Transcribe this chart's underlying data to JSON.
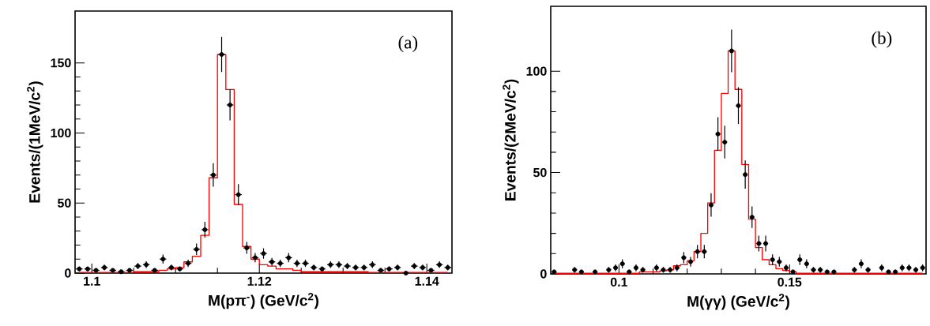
{
  "chart_data": [
    {
      "type": "scatter",
      "xlabel": "M(pπ$^{-}$) (GeV/c$^{2}$)",
      "ylabel": "Events/(1MeV/c$^{2}$)",
      "annotations": [
        "(a)"
      ],
      "xlim": [
        1.098,
        1.143
      ],
      "ylim": [
        0,
        187
      ],
      "xticks": [
        1.1,
        1.12,
        1.14
      ],
      "yticks": [
        0,
        50,
        100,
        150
      ],
      "x": [
        1.0985,
        1.0995,
        1.1005,
        1.1015,
        1.1025,
        1.1035,
        1.1045,
        1.1055,
        1.1065,
        1.1075,
        1.1085,
        1.1095,
        1.1105,
        1.1115,
        1.1125,
        1.1135,
        1.1145,
        1.1155,
        1.1165,
        1.1175,
        1.1185,
        1.1195,
        1.1205,
        1.1215,
        1.1225,
        1.1235,
        1.1245,
        1.1255,
        1.1265,
        1.1275,
        1.1285,
        1.1295,
        1.1305,
        1.1315,
        1.1325,
        1.1335,
        1.1345,
        1.1355,
        1.1365,
        1.1375,
        1.1385,
        1.1395,
        1.1405,
        1.1415,
        1.1425
      ],
      "series": [
        {
          "type": "step",
          "color": "#ff0000",
          "values": [
            0.5,
            0.5,
            0.5,
            0.5,
            0.5,
            0.5,
            0.5,
            1,
            1,
            1,
            2,
            3,
            4,
            8,
            12,
            27,
            68,
            156,
            131,
            49,
            19,
            10,
            6,
            5,
            3,
            3,
            2,
            1,
            1,
            1,
            1,
            1,
            1,
            1,
            1,
            0.5,
            0.5,
            0.5,
            0.5,
            0.5,
            0.5,
            0.5,
            0.5,
            0.5,
            0.5
          ]
        },
        {
          "color": "#000000",
          "marker": "circle",
          "values": [
            3,
            3,
            2,
            4,
            2,
            1,
            2,
            5,
            6,
            2,
            10,
            4,
            3,
            7,
            17,
            31,
            70,
            156,
            120,
            56,
            18,
            11,
            14,
            8,
            7,
            11,
            7,
            7,
            4,
            3,
            6,
            6,
            5,
            4,
            4,
            6,
            2,
            3,
            4,
            0,
            5,
            4,
            2,
            6,
            4
          ],
          "errors": [
            1.7,
            1.7,
            1.4,
            2,
            1.4,
            1,
            1.4,
            2.2,
            2.4,
            1.4,
            3.2,
            2,
            1.7,
            2.6,
            4.1,
            5.6,
            8.4,
            12.5,
            11,
            7.5,
            4.2,
            3.3,
            3.7,
            2.8,
            2.6,
            3.3,
            2.6,
            2.6,
            2,
            1.7,
            2.4,
            2.4,
            2.2,
            2,
            2,
            2.4,
            1.4,
            1.7,
            2,
            null,
            2.2,
            2,
            1.4,
            2.4,
            2
          ],
          "xerrors": [
            0.0004,
            0.0004,
            0.0004,
            0.0004,
            0.0004,
            0.0004,
            0.0004,
            0.0004,
            0.0004,
            0.0004,
            0.0004,
            0.0004,
            0.0004,
            0.0004,
            0.0004,
            0.0004,
            0.0004,
            0.0004,
            0.0004,
            0.0004,
            0.0004,
            0.0004,
            0.0004,
            0.0004,
            0.0004,
            0.0004,
            0.0004,
            0.0004,
            0.0004,
            0.0004,
            0.0004,
            0.0004,
            0.0004,
            0.0004,
            0.0004,
            0.0004,
            0.0004,
            0.0004,
            0.0004,
            0.0004,
            0.0004,
            0.0004,
            0.0004,
            0.0004,
            0.0004
          ]
        }
      ]
    },
    {
      "type": "scatter",
      "xlabel": "M(γγ) (GeV/c$^{2}$)",
      "ylabel": "Events/(2MeV/c$^{2}$)",
      "annotations": [
        "(b)"
      ],
      "xlim": [
        0.08,
        0.19
      ],
      "ylim": [
        0,
        132
      ],
      "xticks": [
        0.1,
        0.15
      ],
      "yticks": [
        0,
        50,
        100
      ],
      "x": [
        0.081,
        0.083,
        0.085,
        0.087,
        0.089,
        0.091,
        0.093,
        0.095,
        0.097,
        0.099,
        0.101,
        0.103,
        0.105,
        0.107,
        0.109,
        0.111,
        0.113,
        0.115,
        0.117,
        0.119,
        0.121,
        0.123,
        0.125,
        0.127,
        0.129,
        0.131,
        0.133,
        0.135,
        0.137,
        0.139,
        0.141,
        0.143,
        0.145,
        0.147,
        0.149,
        0.151,
        0.153,
        0.155,
        0.157,
        0.159,
        0.161,
        0.163,
        0.165,
        0.167,
        0.169,
        0.171,
        0.173,
        0.175,
        0.177,
        0.179,
        0.181,
        0.183,
        0.185,
        0.187,
        0.189
      ],
      "series": [
        {
          "type": "step",
          "color": "#ff0000",
          "values": [
            0.3,
            0.3,
            0.3,
            0.3,
            0.3,
            0.3,
            0.3,
            0.3,
            0.3,
            0.3,
            0.3,
            0.3,
            0.3,
            1,
            1,
            1,
            1.5,
            2,
            4,
            4.5,
            6.5,
            11,
            20,
            35,
            61,
            89,
            110,
            91,
            54,
            27,
            13,
            7,
            4.5,
            2.6,
            1.7,
            1,
            0.3,
            0.3,
            0.3,
            0.3,
            0.3,
            0.3,
            0.3,
            0.3,
            0.3,
            0.3,
            0.3,
            0.3,
            0.3,
            0.3,
            0.3,
            0.3,
            0.3,
            0.3,
            0.3
          ]
        },
        {
          "color": "#000000",
          "marker": "circle",
          "values": [
            1,
            null,
            null,
            2,
            1,
            null,
            1,
            null,
            2,
            3,
            5,
            1,
            3,
            2,
            null,
            3,
            2,
            2,
            3,
            8,
            6,
            11,
            11,
            34,
            69,
            65,
            110,
            83,
            49,
            28,
            15,
            15,
            7,
            6,
            3,
            1,
            7,
            5,
            2,
            2,
            1,
            1,
            null,
            null,
            2,
            5,
            2,
            null,
            3,
            1,
            1,
            3,
            3,
            2,
            3
          ],
          "errors": [
            1,
            null,
            null,
            1.4,
            1,
            null,
            1,
            null,
            1.4,
            1.7,
            2.2,
            1,
            1.7,
            1.4,
            null,
            1.7,
            1.4,
            1.4,
            1.7,
            2.8,
            2.4,
            3.3,
            3.3,
            5.8,
            8.3,
            8.1,
            10.5,
            9.1,
            7,
            5.3,
            3.9,
            3.9,
            2.6,
            2.4,
            1.7,
            1,
            2.6,
            2.2,
            1.4,
            1.4,
            1,
            1,
            null,
            null,
            1.4,
            2.2,
            1.4,
            null,
            1.7,
            1,
            1,
            1.7,
            1.7,
            1.4,
            1.7
          ],
          "xerrors": [
            0.0007,
            null,
            null,
            0.0007,
            0.0007,
            null,
            0.0007,
            null,
            0.0007,
            0.0007,
            0.0007,
            0.0007,
            0.0007,
            0.0007,
            null,
            0.0007,
            0.0007,
            0.0007,
            0.0007,
            0.0007,
            0.0007,
            0.0007,
            0.0007,
            0.0007,
            0.0007,
            0.0007,
            0.0007,
            0.0007,
            0.0007,
            0.0007,
            0.0007,
            0.0007,
            0.0007,
            0.0007,
            0.0007,
            0.0007,
            0.0007,
            0.0007,
            0.0007,
            0.0007,
            0.0007,
            0.0007,
            null,
            null,
            0.0007,
            0.0007,
            0.0007,
            null,
            0.0007,
            0.0007,
            0.0007,
            0.0007,
            0.0007,
            0.0007,
            0.0007
          ]
        }
      ]
    }
  ]
}
